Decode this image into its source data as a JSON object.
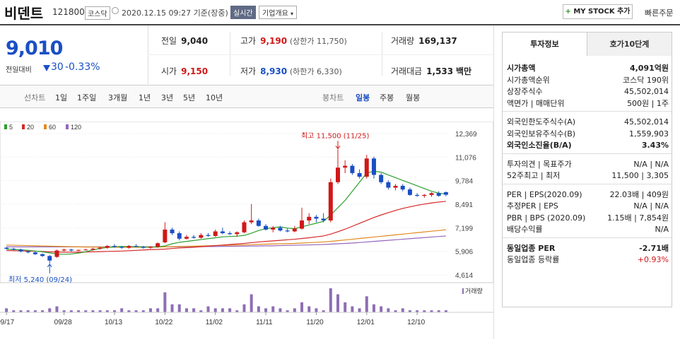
{
  "header": {
    "name": "비덴트",
    "code": "121800",
    "market": "코스닥",
    "datetime": "2020.12.15 09:27 기준(장중)",
    "realtime": "실시간",
    "overview": "기업개요",
    "mystock": "MY STOCK 추가",
    "mystock_plus": "+",
    "fastorder": "빠른주문"
  },
  "price": {
    "current": "9,010",
    "compare_label": "전일대비",
    "change": "30",
    "change_pct": "-0.33%",
    "direction": "down"
  },
  "quotes": {
    "prev_label": "전일",
    "prev": "9,040",
    "high_label": "고가",
    "high": "9,190",
    "upper": "(상한가 11,750)",
    "volume_label": "거래량",
    "volume": "169,137",
    "open_label": "시가",
    "open": "9,150",
    "low_label": "저가",
    "low": "8,930",
    "lower": "(하한가 6,330)",
    "amount_label": "거래대금",
    "amount": "1,533",
    "amount_unit": "백만"
  },
  "tabs": {
    "line_label": "선차트",
    "line_items": [
      "1일",
      "1주일",
      "3개월",
      "1년",
      "3년",
      "5년",
      "10년"
    ],
    "candle_label": "봉차트",
    "candle_items": [
      "일봉",
      "주봉",
      "월봉"
    ],
    "active_candle": "일봉"
  },
  "colors": {
    "up": "#d01818",
    "down": "#1a4fc4",
    "ma5": "#2ca02c",
    "ma20": "#d62728",
    "ma60": "#e08a1e",
    "ma120": "#9467bd",
    "volume": "#8e6fb5"
  },
  "chart_data": {
    "type": "candlestick",
    "legend": [
      "5",
      "20",
      "60",
      "120"
    ],
    "yticks": [
      "12,369",
      "11,076",
      "9,784",
      "8,491",
      "7,199",
      "5,906",
      "4,614"
    ],
    "ylim": [
      4614,
      12369
    ],
    "xticks": [
      "09/17",
      "09/28",
      "10/13",
      "10/22",
      "11/02",
      "11/11",
      "11/20",
      "12/01",
      "12/10"
    ],
    "xtick_index": [
      0,
      8,
      15,
      22,
      29,
      36,
      43,
      50,
      57
    ],
    "annotation_high": "최고 11,500 (11/25)",
    "annotation_low": "최저 5,240 (09/24)",
    "volume_label": "거래량",
    "candles": [
      [
        6100,
        6150,
        6000,
        6050
      ],
      [
        6050,
        6100,
        5950,
        6000
      ],
      [
        6000,
        6050,
        5850,
        5900
      ],
      [
        5900,
        5950,
        5800,
        5850
      ],
      [
        5850,
        5900,
        5700,
        5750
      ],
      [
        5750,
        5800,
        5600,
        5650
      ],
      [
        5650,
        5700,
        5240,
        5400
      ],
      [
        5600,
        6000,
        5550,
        5950
      ],
      [
        5950,
        6050,
        5900,
        6000
      ],
      [
        6000,
        6050,
        5900,
        5950
      ],
      [
        5950,
        6000,
        5900,
        5980
      ],
      [
        5980,
        6050,
        5950,
        6000
      ],
      [
        6000,
        6100,
        5950,
        6050
      ],
      [
        6050,
        6150,
        6000,
        6100
      ],
      [
        6100,
        6250,
        6050,
        6200
      ],
      [
        6200,
        6300,
        6100,
        6150
      ],
      [
        6150,
        6200,
        6050,
        6100
      ],
      [
        6100,
        6250,
        6050,
        6200
      ],
      [
        6200,
        6300,
        6150,
        6150
      ],
      [
        6150,
        6200,
        6050,
        6100
      ],
      [
        6100,
        6200,
        6050,
        6150
      ],
      [
        6150,
        6400,
        6100,
        6350
      ],
      [
        6400,
        7500,
        6350,
        7100
      ],
      [
        7100,
        7200,
        6800,
        6900
      ],
      [
        6900,
        7000,
        6500,
        6600
      ],
      [
        6600,
        6800,
        6550,
        6700
      ],
      [
        6700,
        6800,
        6600,
        6650
      ],
      [
        6650,
        6900,
        6600,
        6800
      ],
      [
        6800,
        6900,
        6700,
        6750
      ],
      [
        6750,
        7100,
        6700,
        7000
      ],
      [
        7000,
        7200,
        6850,
        6900
      ],
      [
        6900,
        7000,
        6800,
        6850
      ],
      [
        6850,
        7000,
        6700,
        6950
      ],
      [
        6950,
        7600,
        6900,
        7500
      ],
      [
        7500,
        8500,
        7400,
        7600
      ],
      [
        7600,
        7700,
        7250,
        7300
      ],
      [
        7300,
        7400,
        7050,
        7100
      ],
      [
        7100,
        7300,
        6950,
        7200
      ],
      [
        7200,
        7300,
        7000,
        7050
      ],
      [
        7050,
        7150,
        6950,
        7000
      ],
      [
        7000,
        7300,
        6950,
        7150
      ],
      [
        7150,
        8300,
        7100,
        7600
      ],
      [
        7600,
        8000,
        7400,
        7800
      ],
      [
        7800,
        7900,
        7500,
        7700
      ],
      [
        7700,
        8000,
        7500,
        7600
      ],
      [
        7600,
        9900,
        7500,
        9700
      ],
      [
        9700,
        11500,
        9600,
        10500
      ],
      [
        10500,
        10900,
        10200,
        10600
      ],
      [
        10600,
        10700,
        10100,
        10200
      ],
      [
        10200,
        10400,
        9900,
        10000
      ],
      [
        10000,
        11200,
        9900,
        11000
      ],
      [
        11000,
        11100,
        9900,
        10100
      ],
      [
        10100,
        10200,
        9600,
        9700
      ],
      [
        9700,
        9800,
        9300,
        9400
      ],
      [
        9400,
        9600,
        9250,
        9500
      ],
      [
        9500,
        9600,
        9200,
        9300
      ],
      [
        9300,
        9400,
        8950,
        9000
      ],
      [
        9000,
        9100,
        8900,
        8950
      ],
      [
        8950,
        9050,
        8850,
        9000
      ],
      [
        9000,
        9150,
        8900,
        9100
      ],
      [
        9100,
        9200,
        8900,
        8950
      ],
      [
        9150,
        9190,
        8930,
        9010
      ]
    ],
    "ma5": [
      6030,
      6010,
      5990,
      5960,
      5920,
      5880,
      5820,
      5760,
      5740,
      5760,
      5810,
      5880,
      5980,
      6060,
      6120,
      6160,
      6170,
      6170,
      6160,
      6150,
      6140,
      6150,
      6200,
      6320,
      6400,
      6450,
      6500,
      6550,
      6600,
      6650,
      6700,
      6720,
      6740,
      6780,
      6900,
      7050,
      7150,
      7200,
      7250,
      7180,
      7150,
      7250,
      7350,
      7450,
      7550,
      7900,
      8300,
      8700,
      9200,
      9700,
      10200,
      10300,
      10250,
      10100,
      9950,
      9800,
      9650,
      9500,
      9350,
      9200,
      9100,
      9050
    ],
    "ma20": [
      5950,
      5940,
      5930,
      5920,
      5910,
      5900,
      5880,
      5870,
      5860,
      5860,
      5860,
      5870,
      5880,
      5890,
      5900,
      5910,
      5920,
      5940,
      5960,
      5980,
      6000,
      6010,
      6030,
      6060,
      6090,
      6110,
      6130,
      6160,
      6190,
      6220,
      6250,
      6280,
      6310,
      6340,
      6380,
      6420,
      6450,
      6480,
      6510,
      6540,
      6570,
      6610,
      6650,
      6700,
      6750,
      6850,
      6980,
      7120,
      7280,
      7440,
      7600,
      7760,
      7900,
      8030,
      8150,
      8260,
      8350,
      8430,
      8500,
      8560,
      8610,
      8650
    ],
    "ma60": [
      6250,
      6240,
      6230,
      6220,
      6210,
      6200,
      6190,
      6180,
      6170,
      6160,
      6150,
      6140,
      6140,
      6130,
      6130,
      6130,
      6130,
      6130,
      6130,
      6130,
      6130,
      6140,
      6150,
      6160,
      6170,
      6180,
      6190,
      6200,
      6210,
      6220,
      6230,
      6240,
      6250,
      6260,
      6270,
      6290,
      6300,
      6310,
      6320,
      6330,
      6340,
      6360,
      6380,
      6400,
      6420,
      6450,
      6490,
      6530,
      6570,
      6610,
      6650,
      6690,
      6730,
      6770,
      6810,
      6850,
      6890,
      6930,
      6970,
      7010,
      7050,
      7090
    ],
    "ma120": [
      6150,
      6150,
      6150,
      6150,
      6150,
      6150,
      6150,
      6150,
      6150,
      6150,
      6150,
      6150,
      6150,
      6150,
      6150,
      6150,
      6150,
      6150,
      6150,
      6150,
      6150,
      6150,
      6150,
      6150,
      6150,
      6160,
      6160,
      6160,
      6170,
      6170,
      6180,
      6180,
      6190,
      6190,
      6200,
      6200,
      6210,
      6210,
      6220,
      6230,
      6240,
      6250,
      6260,
      6270,
      6280,
      6300,
      6320,
      6340,
      6360,
      6390,
      6420,
      6450,
      6480,
      6510,
      6540,
      6570,
      6600,
      6630,
      6660,
      6690,
      6720,
      6750
    ],
    "volume": [
      2,
      1,
      1,
      1,
      1,
      1,
      2,
      3,
      1,
      1,
      1,
      1,
      1,
      1,
      1,
      1,
      2,
      1,
      1,
      1,
      2,
      2,
      10,
      4,
      4,
      2,
      2,
      1,
      3,
      2,
      2,
      2,
      1,
      4,
      9,
      3,
      2,
      3,
      2,
      1,
      2,
      5,
      3,
      2,
      1,
      12,
      9,
      5,
      3,
      2,
      8,
      4,
      3,
      2,
      1,
      2,
      1,
      1,
      1,
      1,
      1,
      1
    ]
  },
  "right": {
    "tab_active": "투자정보",
    "tab2": "호가10단계",
    "rows1": [
      {
        "k": "시가총액",
        "v": "4,091억원",
        "bold": true
      },
      {
        "k": "시가총액순위",
        "v": "코스닥 190위"
      },
      {
        "k": "상장주식수",
        "v": "45,502,014"
      },
      {
        "k": "액면가 | 매매단위",
        "v": "500원 | 1주"
      }
    ],
    "rows2": [
      {
        "k": "외국인한도주식수(A)",
        "v": "45,502,014"
      },
      {
        "k": "외국인보유주식수(B)",
        "v": "1,559,903"
      },
      {
        "k": "외국인소진율(B/A)",
        "v": "3.43%",
        "bold": true
      }
    ],
    "rows3": [
      {
        "k": "투자의견 | 목표주가",
        "v": "N/A | N/A"
      },
      {
        "k": "52주최고 | 최저",
        "v": "11,500 | 3,305"
      }
    ],
    "rows4": [
      {
        "k": "PER | EPS(2020.09)",
        "v": "22.03배 | 409원"
      },
      {
        "k": "추정PER | EPS",
        "v": "N/A | N/A"
      },
      {
        "k": "PBR | BPS (2020.09)",
        "v": "1.15배 | 7,854원"
      },
      {
        "k": "배당수익률",
        "v": "N/A"
      }
    ],
    "rows5": [
      {
        "k": "동일업종 PER",
        "v": "-2.71배",
        "bold": true
      },
      {
        "k": "동일업종 등락률",
        "v": "+0.93%",
        "red": true
      }
    ]
  }
}
